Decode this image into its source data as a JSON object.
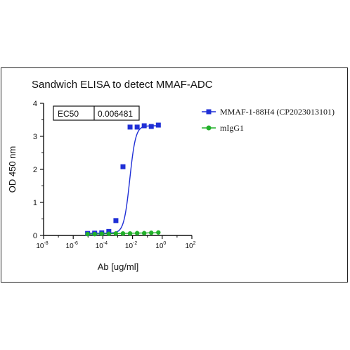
{
  "chart_data": {
    "type": "scatter",
    "title": "Sandwich ELISA to detect MMAF-ADC",
    "xlabel": "Ab [ug/ml]",
    "ylabel": "OD 450 nm",
    "x_scale": "log10",
    "xlim": [
      1e-08,
      100
    ],
    "ylim": [
      0,
      4
    ],
    "x_tick_exponents": [
      "-8",
      "-6",
      "-4",
      "-2",
      "0",
      "2"
    ],
    "y_ticks": [
      "0",
      "1",
      "2",
      "3",
      "4"
    ],
    "annotation_table": {
      "label": "EC50",
      "value": "0.006481"
    },
    "legend_placement": "right",
    "series": [
      {
        "name": "MMAF-1-88H4 (CP2023013101)",
        "color": "#1f2fd6",
        "marker": "square",
        "x": [
          9.31e-06,
          2.79e-05,
          8.38e-05,
          0.000251,
          0.000754,
          0.00226,
          0.00679,
          0.0204,
          0.0611,
          0.183,
          0.55
        ],
        "y": [
          0.06,
          0.07,
          0.08,
          0.12,
          0.45,
          2.08,
          3.28,
          3.28,
          3.32,
          3.3,
          3.34
        ],
        "fit": {
          "bottom": 0.07,
          "top": 3.32,
          "ec50": 0.006481,
          "hill": 2.2
        }
      },
      {
        "name": "mIgG1",
        "color": "#22b02a",
        "marker": "circle",
        "x": [
          9.31e-06,
          2.79e-05,
          8.38e-05,
          0.000251,
          0.000754,
          0.00226,
          0.00679,
          0.0204,
          0.0611,
          0.183,
          0.55
        ],
        "y": [
          0.04,
          0.04,
          0.05,
          0.05,
          0.06,
          0.06,
          0.06,
          0.07,
          0.07,
          0.08,
          0.09
        ]
      }
    ]
  }
}
